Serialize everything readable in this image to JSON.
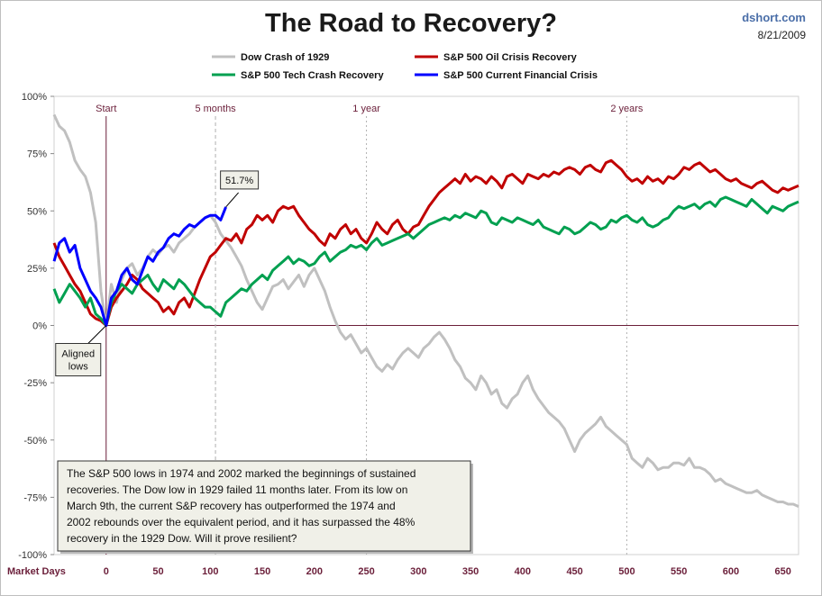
{
  "header": {
    "title": "The Road to Recovery?",
    "source": "dshort.com",
    "date": "8/21/2009"
  },
  "colors": {
    "dow": "#c0c0c0",
    "oil": "#c00000",
    "tech": "#00a050",
    "current": "#0000ff",
    "marker": "#6b1f3a"
  },
  "chart_data": {
    "type": "line",
    "title": "The Road to Recovery?",
    "xlabel": "Market Days",
    "ylabel": "",
    "xlim": [
      -50,
      665
    ],
    "ylim": [
      -100,
      100
    ],
    "x_ticks": [
      0,
      50,
      100,
      150,
      200,
      250,
      300,
      350,
      400,
      450,
      500,
      550,
      600,
      650
    ],
    "y_ticks": [
      {
        "value": 100,
        "label": "100%"
      },
      {
        "value": 75,
        "label": "75%"
      },
      {
        "value": 50,
        "label": "50%"
      },
      {
        "value": 25,
        "label": "25%"
      },
      {
        "value": 0,
        "label": "0%"
      },
      {
        "value": -25,
        "label": "-25%"
      },
      {
        "value": -50,
        "label": "-50%"
      },
      {
        "value": -75,
        "label": "-75%"
      },
      {
        "value": -100,
        "label": "-100%"
      }
    ],
    "markers": [
      {
        "x": 0,
        "label": "Start",
        "style": "solid"
      },
      {
        "x": 105,
        "label": "5 months",
        "style": "dashed"
      },
      {
        "x": 250,
        "label": "1 year",
        "style": "dotted"
      },
      {
        "x": 500,
        "label": "2 years",
        "style": "dotted"
      }
    ],
    "legend": "top",
    "series": [
      {
        "name": "Dow Crash of 1929",
        "color": "#c0c0c0",
        "x": [
          -50,
          -45,
          -40,
          -35,
          -30,
          -25,
          -20,
          -15,
          -10,
          -5,
          0,
          5,
          10,
          15,
          20,
          25,
          30,
          35,
          40,
          45,
          50,
          55,
          60,
          65,
          70,
          75,
          80,
          85,
          90,
          95,
          100,
          105,
          110,
          115,
          120,
          125,
          130,
          135,
          140,
          145,
          150,
          155,
          160,
          165,
          170,
          175,
          180,
          185,
          190,
          195,
          200,
          205,
          210,
          215,
          220,
          225,
          230,
          235,
          240,
          245,
          250,
          255,
          260,
          265,
          270,
          275,
          280,
          285,
          290,
          295,
          300,
          305,
          310,
          315,
          320,
          325,
          330,
          335,
          340,
          345,
          350,
          355,
          360,
          365,
          370,
          375,
          380,
          385,
          390,
          395,
          400,
          405,
          410,
          415,
          420,
          425,
          430,
          435,
          440,
          445,
          450,
          455,
          460,
          465,
          470,
          475,
          480,
          485,
          490,
          495,
          500,
          505,
          510,
          515,
          520,
          525,
          530,
          535,
          540,
          545,
          550,
          555,
          560,
          565,
          570,
          575,
          580,
          585,
          590,
          595,
          600,
          605,
          610,
          615,
          620,
          625,
          630,
          635,
          640,
          645,
          650,
          655,
          660,
          665
        ],
        "y": [
          92,
          87,
          85,
          80,
          72,
          68,
          65,
          58,
          45,
          15,
          0,
          18,
          10,
          20,
          25,
          27,
          22,
          25,
          30,
          33,
          31,
          34,
          35,
          32,
          36,
          38,
          40,
          43,
          45,
          47,
          48,
          45,
          40,
          37,
          34,
          30,
          26,
          20,
          15,
          10,
          7,
          12,
          17,
          18,
          20,
          16,
          19,
          22,
          17,
          22,
          25,
          20,
          15,
          8,
          2,
          -3,
          -6,
          -4,
          -8,
          -12,
          -10,
          -14,
          -18,
          -20,
          -17,
          -19,
          -15,
          -12,
          -10,
          -12,
          -14,
          -10,
          -8,
          -5,
          -3,
          -6,
          -10,
          -15,
          -18,
          -23,
          -25,
          -28,
          -22,
          -25,
          -30,
          -28,
          -34,
          -36,
          -32,
          -30,
          -25,
          -22,
          -28,
          -32,
          -35,
          -38,
          -40,
          -42,
          -45,
          -50,
          -55,
          -50,
          -47,
          -45,
          -43,
          -40,
          -44,
          -46,
          -48,
          -50,
          -52,
          -58,
          -60,
          -62,
          -58,
          -60,
          -63,
          -62,
          -62,
          -60,
          -60,
          -61,
          -58,
          -62,
          -62,
          -63,
          -65,
          -68,
          -67,
          -69,
          -70,
          -71,
          -72,
          -73,
          -73,
          -72,
          -74,
          -75,
          -76,
          -77,
          -77,
          -78,
          -78,
          -79
        ]
      },
      {
        "name": "S&P 500 Oil Crisis Recovery",
        "color": "#c00000",
        "x": [
          -50,
          -45,
          -40,
          -35,
          -30,
          -25,
          -20,
          -15,
          -10,
          -5,
          0,
          5,
          10,
          15,
          20,
          25,
          30,
          35,
          40,
          45,
          50,
          55,
          60,
          65,
          70,
          75,
          80,
          85,
          90,
          95,
          100,
          105,
          110,
          115,
          120,
          125,
          130,
          135,
          140,
          145,
          150,
          155,
          160,
          165,
          170,
          175,
          180,
          185,
          190,
          195,
          200,
          205,
          210,
          215,
          220,
          225,
          230,
          235,
          240,
          245,
          250,
          255,
          260,
          265,
          270,
          275,
          280,
          285,
          290,
          295,
          300,
          305,
          310,
          315,
          320,
          325,
          330,
          335,
          340,
          345,
          350,
          355,
          360,
          365,
          370,
          375,
          380,
          385,
          390,
          395,
          400,
          405,
          410,
          415,
          420,
          425,
          430,
          435,
          440,
          445,
          450,
          455,
          460,
          465,
          470,
          475,
          480,
          485,
          490,
          495,
          500,
          505,
          510,
          515,
          520,
          525,
          530,
          535,
          540,
          545,
          550,
          555,
          560,
          565,
          570,
          575,
          580,
          585,
          590,
          595,
          600,
          605,
          610,
          615,
          620,
          625,
          630,
          635,
          640,
          645,
          650,
          655,
          660,
          665
        ],
        "y": [
          36,
          30,
          26,
          22,
          18,
          15,
          10,
          5,
          3,
          2,
          0,
          8,
          12,
          15,
          18,
          22,
          20,
          16,
          14,
          12,
          10,
          6,
          8,
          5,
          10,
          12,
          8,
          14,
          20,
          25,
          30,
          32,
          35,
          38,
          37,
          40,
          36,
          42,
          44,
          48,
          46,
          48,
          45,
          50,
          52,
          51,
          52,
          48,
          45,
          42,
          40,
          37,
          35,
          40,
          38,
          42,
          44,
          40,
          42,
          38,
          36,
          40,
          45,
          42,
          40,
          44,
          46,
          42,
          40,
          43,
          44,
          48,
          52,
          55,
          58,
          60,
          62,
          64,
          62,
          66,
          63,
          65,
          64,
          62,
          65,
          63,
          60,
          65,
          66,
          64,
          62,
          66,
          65,
          64,
          66,
          65,
          67,
          66,
          68,
          69,
          68,
          66,
          69,
          70,
          68,
          67,
          71,
          72,
          70,
          68,
          65,
          63,
          64,
          62,
          65,
          63,
          64,
          62,
          65,
          64,
          66,
          69,
          68,
          70,
          71,
          69,
          67,
          68,
          66,
          64,
          63,
          64,
          62,
          61,
          60,
          62,
          63,
          61,
          59,
          58,
          60,
          59,
          60,
          61
        ]
      },
      {
        "name": "S&P 500 Tech Crash Recovery",
        "color": "#00a050",
        "x": [
          -50,
          -45,
          -40,
          -35,
          -30,
          -25,
          -20,
          -15,
          -10,
          -5,
          0,
          5,
          10,
          15,
          20,
          25,
          30,
          35,
          40,
          45,
          50,
          55,
          60,
          65,
          70,
          75,
          80,
          85,
          90,
          95,
          100,
          105,
          110,
          115,
          120,
          125,
          130,
          135,
          140,
          145,
          150,
          155,
          160,
          165,
          170,
          175,
          180,
          185,
          190,
          195,
          200,
          205,
          210,
          215,
          220,
          225,
          230,
          235,
          240,
          245,
          250,
          255,
          260,
          265,
          270,
          275,
          280,
          285,
          290,
          295,
          300,
          305,
          310,
          315,
          320,
          325,
          330,
          335,
          340,
          345,
          350,
          355,
          360,
          365,
          370,
          375,
          380,
          385,
          390,
          395,
          400,
          405,
          410,
          415,
          420,
          425,
          430,
          435,
          440,
          445,
          450,
          455,
          460,
          465,
          470,
          475,
          480,
          485,
          490,
          495,
          500,
          505,
          510,
          515,
          520,
          525,
          530,
          535,
          540,
          545,
          550,
          555,
          560,
          565,
          570,
          575,
          580,
          585,
          590,
          595,
          600,
          605,
          610,
          615,
          620,
          625,
          630,
          635,
          640,
          645,
          650,
          655,
          660,
          665
        ],
        "y": [
          16,
          10,
          14,
          18,
          15,
          12,
          8,
          12,
          5,
          3,
          0,
          10,
          15,
          18,
          16,
          14,
          18,
          20,
          22,
          18,
          15,
          20,
          18,
          16,
          20,
          18,
          15,
          12,
          10,
          8,
          8,
          6,
          4,
          10,
          12,
          14,
          16,
          15,
          18,
          20,
          22,
          20,
          24,
          26,
          28,
          30,
          27,
          29,
          28,
          26,
          27,
          30,
          32,
          28,
          30,
          32,
          33,
          35,
          34,
          35,
          33,
          36,
          38,
          35,
          36,
          37,
          38,
          39,
          40,
          38,
          40,
          42,
          44,
          45,
          46,
          47,
          46,
          48,
          47,
          49,
          48,
          47,
          50,
          49,
          45,
          44,
          47,
          46,
          45,
          47,
          46,
          45,
          44,
          46,
          43,
          42,
          41,
          40,
          43,
          42,
          40,
          41,
          43,
          45,
          44,
          42,
          43,
          46,
          45,
          47,
          48,
          46,
          45,
          47,
          44,
          43,
          44,
          46,
          47,
          50,
          52,
          51,
          52,
          53,
          51,
          53,
          54,
          52,
          55,
          56,
          55,
          54,
          53,
          52,
          55,
          53,
          51,
          49,
          52,
          51,
          50,
          52,
          53,
          54
        ]
      },
      {
        "name": "S&P 500 Current Financial  Crisis",
        "color": "#0000ff",
        "x": [
          -50,
          -45,
          -40,
          -35,
          -30,
          -25,
          -20,
          -15,
          -10,
          -5,
          0,
          5,
          10,
          15,
          20,
          25,
          30,
          35,
          40,
          45,
          50,
          55,
          60,
          65,
          70,
          75,
          80,
          85,
          90,
          95,
          100,
          105,
          110,
          115
        ],
        "y": [
          28,
          36,
          38,
          32,
          35,
          25,
          20,
          15,
          12,
          8,
          0,
          12,
          15,
          22,
          25,
          20,
          18,
          24,
          30,
          28,
          32,
          34,
          38,
          40,
          39,
          42,
          44,
          43,
          45,
          47,
          48,
          48,
          46,
          51.7
        ]
      }
    ],
    "annotations": [
      {
        "x": 0,
        "y": 0,
        "text_lines": [
          "Aligned",
          "lows"
        ]
      },
      {
        "x": 115,
        "y": 51.7,
        "text": "51.7%"
      }
    ]
  },
  "note": {
    "lines": [
      "The S&P 500  lows in 1974  and 2002  marked the beginnings of sustained",
      "recoveries. The Dow low in 1929  failed 11 months later.  From its low on",
      "March 9th, the current S&P recovery has outperformed the 1974 and",
      "2002 rebounds over the equivalent period, and it has surpassed the 48%",
      "recovery in the 1929 Dow. Will it prove resilient?"
    ]
  }
}
